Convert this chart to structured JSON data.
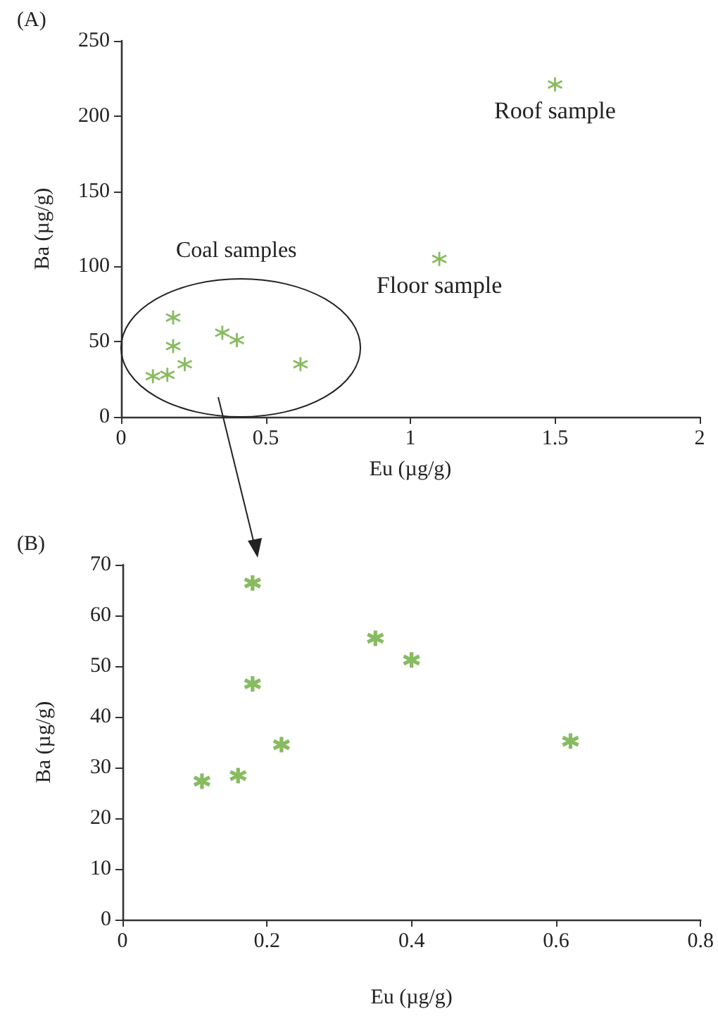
{
  "chart_data": [
    {
      "type": "scatter",
      "xlabel": "Eu (µg/g)",
      "ylabel": "Ba (µg/g)",
      "x": [
        0.11,
        0.16,
        0.18,
        0.18,
        0.22,
        0.35,
        0.4,
        0.62,
        1.1,
        1.5
      ],
      "series": [
        {
          "color": "#6aaa3a",
          "values": [
            27,
            28,
            66,
            47,
            35,
            56,
            51,
            35,
            105,
            221
          ]
        }
      ],
      "xlim": [
        0,
        2
      ],
      "xticks": [
        0,
        0.5,
        1,
        1.5,
        2
      ],
      "ylim": [
        0,
        250
      ],
      "yticks": [
        0,
        50,
        100,
        150,
        200,
        250
      ],
      "grid": false,
      "marker": "cross",
      "annotations": [
        "(A)",
        {
          "text": "Roof sample",
          "x": 1.5,
          "y": 221
        },
        {
          "text": "Floor sample",
          "x": 1.1,
          "y": 105
        },
        "Coal samples"
      ]
    },
    {
      "type": "scatter",
      "xlabel": "Eu (µg/g)",
      "ylabel": "Ba (µg/g)",
      "x": [
        0.11,
        0.16,
        0.18,
        0.18,
        0.22,
        0.35,
        0.4,
        0.62
      ],
      "series": [
        {
          "color": "#6aaa3a",
          "values": [
            27.3,
            28.4,
            66.4,
            46.5,
            34.5,
            55.5,
            51.2,
            35.2
          ]
        }
      ],
      "xlim": [
        0,
        0.8
      ],
      "xticks": [
        0,
        0.2,
        0.4,
        0.6,
        0.8
      ],
      "ylim": [
        0,
        70
      ],
      "yticks": [
        0,
        10,
        20,
        30,
        40,
        50,
        60,
        70
      ],
      "grid": false,
      "marker": "cross",
      "annotations": [
        "(B)"
      ]
    }
  ]
}
